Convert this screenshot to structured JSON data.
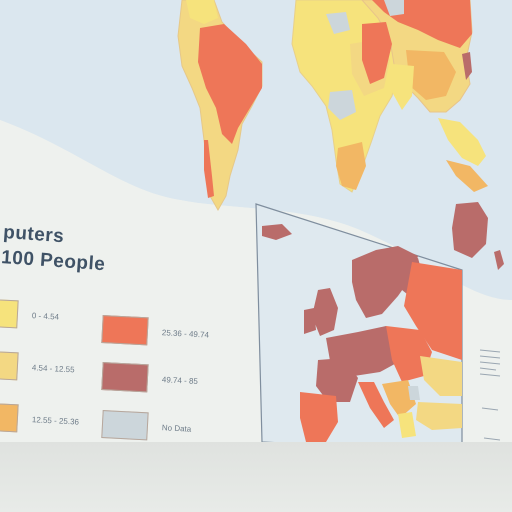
{
  "legend": {
    "title_line1": "puters",
    "title_line2": "100 People",
    "items": [
      {
        "range": "0 - 4.54",
        "color": "#f6e37c",
        "name": "class-1"
      },
      {
        "range": "4.54 - 12.55",
        "color": "#f3d883",
        "name": "class-2"
      },
      {
        "range": "12.55 - 25.36",
        "color": "#f2b764",
        "name": "class-3"
      },
      {
        "range": "25.36 - 49.74",
        "color": "#ee7658",
        "name": "class-4"
      },
      {
        "range": "49.74 - 85",
        "color": "#b96c6a",
        "name": "class-5"
      },
      {
        "range": "No Data",
        "color": "#ccd6db",
        "name": "no-data"
      }
    ]
  },
  "colors": {
    "ocean": "#d9e6ee",
    "inset_ocean": "#dfe9ef",
    "background": "#eef1ee"
  }
}
